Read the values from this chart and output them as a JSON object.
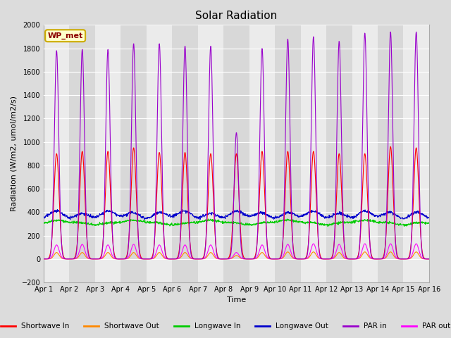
{
  "title": "Solar Radiation",
  "xlabel": "Time",
  "ylabel": "Radiation (W/m2, umol/m2/s)",
  "ylim": [
    -200,
    2000
  ],
  "xlim": [
    0,
    15
  ],
  "xtick_labels": [
    "Apr 1",
    "Apr 2",
    "Apr 3",
    "Apr 4",
    "Apr 5",
    "Apr 6",
    "Apr 7",
    "Apr 8",
    "Apr 9",
    "Apr 10",
    "Apr 11",
    "Apr 12",
    "Apr 13",
    "Apr 14",
    "Apr 15",
    "Apr 16"
  ],
  "ytick_values": [
    -200,
    0,
    200,
    400,
    600,
    800,
    1000,
    1200,
    1400,
    1600,
    1800,
    2000
  ],
  "bg_color": "#dcdcdc",
  "plot_bg_color_light": "#ebebeb",
  "plot_bg_color_dark": "#d8d8d8",
  "grid_color": "#ffffff",
  "annotation_text": "WP_met",
  "annotation_color": "#8B0000",
  "annotation_bg": "#ffffcc",
  "annotation_border": "#ccaa00",
  "legend": {
    "entries": [
      "Shortwave In",
      "Shortwave Out",
      "Longwave In",
      "Longwave Out",
      "PAR in",
      "PAR out"
    ],
    "colors": [
      "#ff0000",
      "#ff8800",
      "#00cc00",
      "#0000cc",
      "#9900cc",
      "#ff00ff"
    ]
  },
  "series_colors": {
    "sw_in": "#ff0000",
    "sw_out": "#ff8800",
    "lw_in": "#00cc00",
    "lw_out": "#0000cc",
    "par_in": "#9900cc",
    "par_out": "#ff00ff"
  },
  "sw_peaks": [
    900,
    920,
    920,
    950,
    910,
    910,
    900,
    900,
    920,
    920,
    920,
    900,
    900,
    960,
    950
  ],
  "par_peaks": [
    1780,
    1790,
    1790,
    1840,
    1840,
    1820,
    1820,
    1080,
    1800,
    1880,
    1900,
    1860,
    1930,
    1940,
    1940
  ],
  "par_out_peaks": [
    120,
    125,
    120,
    125,
    120,
    120,
    120,
    55,
    120,
    125,
    130,
    125,
    130,
    130,
    130
  ],
  "sw_out_peaks": [
    55,
    55,
    55,
    55,
    55,
    55,
    55,
    30,
    55,
    60,
    60,
    55,
    60,
    60,
    60
  ]
}
